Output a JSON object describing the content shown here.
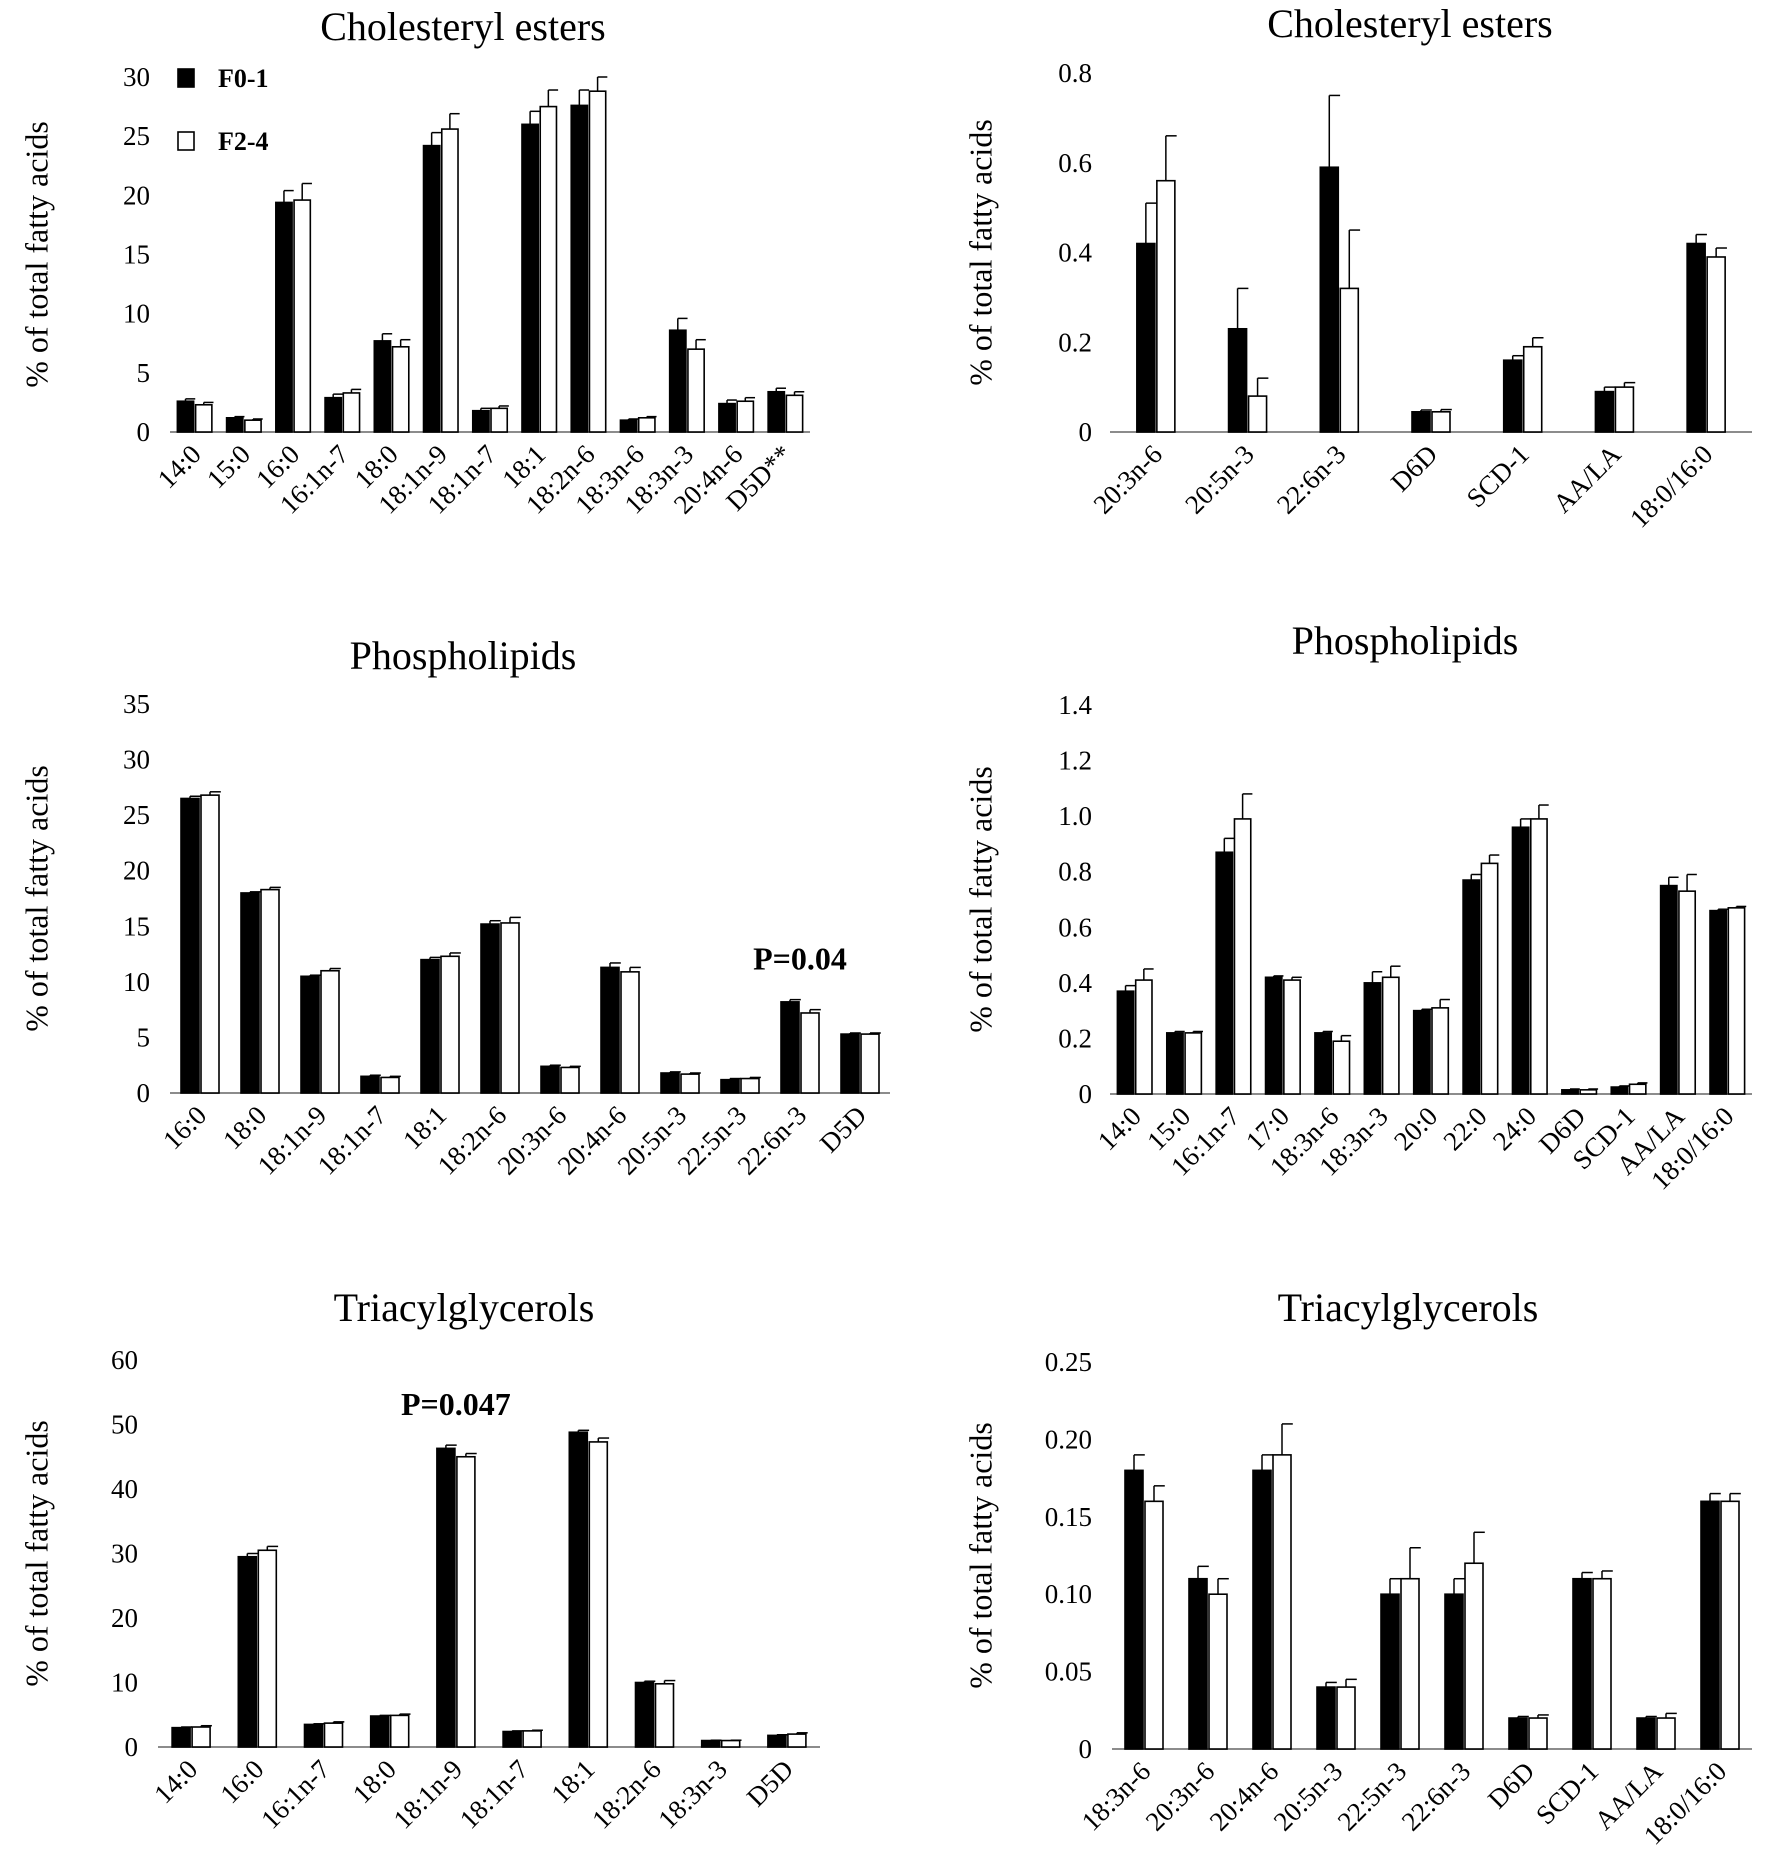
{
  "figure": {
    "series_names": [
      "F0-1",
      "F2-4"
    ],
    "colors": {
      "F0-1": "#000000",
      "F2-4": "#ffffff",
      "axis": "#8c8c8c",
      "error": "#000000"
    }
  },
  "chart_data": [
    {
      "id": "ce-main",
      "type": "bar",
      "title": "Cholesteryl esters",
      "ylabel": "% of total fatty acids",
      "xlabel": "",
      "ylim": [
        0,
        30
      ],
      "yticks": [
        "0",
        "5",
        "10",
        "15",
        "20",
        "25",
        "30"
      ],
      "legend": {
        "position": "top-left",
        "entries": [
          "F0-1",
          "F2-4"
        ]
      },
      "annotation": "",
      "categories": [
        "14:0",
        "15:0",
        "16:0",
        "16:1n-7",
        "18:0",
        "18:1n-9",
        "18:1n-7",
        "18:1",
        "18:2n-6",
        "18:3n-6",
        "18:3n-3",
        "20:4n-6",
        "D5D**"
      ],
      "series": [
        {
          "name": "F0-1",
          "values": [
            2.6,
            1.2,
            19.4,
            2.9,
            7.7,
            24.2,
            1.8,
            26.0,
            27.6,
            1.0,
            8.6,
            2.4,
            3.4
          ],
          "errors": [
            0.2,
            0.1,
            1.0,
            0.3,
            0.6,
            1.1,
            0.2,
            1.1,
            1.3,
            0.1,
            1.0,
            0.3,
            0.3
          ]
        },
        {
          "name": "F2-4",
          "values": [
            2.3,
            1.0,
            19.6,
            3.3,
            7.2,
            25.6,
            2.0,
            27.5,
            28.8,
            1.2,
            7.0,
            2.6,
            3.1
          ],
          "errors": [
            0.2,
            0.1,
            1.4,
            0.3,
            0.6,
            1.3,
            0.2,
            1.4,
            1.2,
            0.1,
            0.8,
            0.3,
            0.3
          ]
        }
      ]
    },
    {
      "id": "ce-minor",
      "type": "bar",
      "title": "Cholesteryl esters",
      "ylabel": "% of total fatty acids",
      "xlabel": "",
      "ylim": [
        0,
        0.8
      ],
      "yticks": [
        "0",
        "0.2",
        "0.4",
        "0.6",
        "0.8"
      ],
      "annotation": "",
      "categories": [
        "20:3n-6",
        "20:5n-3",
        "22:6n-3",
        "D6D",
        "SCD-1",
        "AA/LA",
        "18:0/16:0"
      ],
      "series": [
        {
          "name": "F0-1",
          "values": [
            0.42,
            0.23,
            0.59,
            0.045,
            0.16,
            0.09,
            0.42
          ],
          "errors": [
            0.09,
            0.09,
            0.16,
            0.004,
            0.01,
            0.01,
            0.02
          ]
        },
        {
          "name": "F2-4",
          "values": [
            0.56,
            0.08,
            0.32,
            0.045,
            0.19,
            0.1,
            0.39
          ],
          "errors": [
            0.1,
            0.04,
            0.13,
            0.005,
            0.02,
            0.01,
            0.02
          ]
        }
      ]
    },
    {
      "id": "pl-main",
      "type": "bar",
      "title": "Phospholipids",
      "ylabel": "% of total fatty acids",
      "xlabel": "",
      "ylim": [
        0,
        35
      ],
      "yticks": [
        "0",
        "5",
        "10",
        "15",
        "20",
        "25",
        "30",
        "35"
      ],
      "annotation": "P=0.04",
      "annotation_category": "22:6n-3",
      "categories": [
        "16:0",
        "18:0",
        "18:1n-9",
        "18:1n-7",
        "18:1",
        "18:2n-6",
        "20:3n-6",
        "20:4n-6",
        "20:5n-3",
        "22:5n-3",
        "22:6n-3",
        "D5D"
      ],
      "series": [
        {
          "name": "F0-1",
          "values": [
            26.5,
            18.0,
            10.5,
            1.5,
            12.0,
            15.2,
            2.4,
            11.3,
            1.8,
            1.2,
            8.2,
            5.3
          ],
          "errors": [
            0.2,
            0.1,
            0.1,
            0.1,
            0.2,
            0.3,
            0.1,
            0.4,
            0.1,
            0.1,
            0.2,
            0.1
          ]
        },
        {
          "name": "F2-4",
          "values": [
            26.8,
            18.3,
            11.0,
            1.4,
            12.3,
            15.3,
            2.3,
            10.9,
            1.7,
            1.3,
            7.2,
            5.3
          ],
          "errors": [
            0.3,
            0.2,
            0.2,
            0.1,
            0.3,
            0.5,
            0.1,
            0.4,
            0.1,
            0.1,
            0.3,
            0.1
          ]
        }
      ]
    },
    {
      "id": "pl-minor",
      "type": "bar",
      "title": "Phospholipids",
      "ylabel": "% of total fatty acids",
      "xlabel": "",
      "ylim": [
        0,
        1.4
      ],
      "yticks": [
        "0",
        "0.2",
        "0.4",
        "0.6",
        "0.8",
        "1.0",
        "1.2",
        "1.4"
      ],
      "annotation": "",
      "categories": [
        "14:0",
        "15:0",
        "16:1n-7",
        "17:0",
        "18:3n-6",
        "18:3n-3",
        "20:0",
        "22:0",
        "24:0",
        "D6D",
        "SCD-1",
        "AA/LA",
        "18:0/16:0"
      ],
      "series": [
        {
          "name": "F0-1",
          "values": [
            0.37,
            0.22,
            0.87,
            0.42,
            0.22,
            0.4,
            0.3,
            0.77,
            0.96,
            0.015,
            0.025,
            0.75,
            0.66
          ],
          "errors": [
            0.02,
            0.005,
            0.05,
            0.005,
            0.005,
            0.04,
            0.005,
            0.02,
            0.03,
            0.003,
            0.004,
            0.03,
            0.005
          ]
        },
        {
          "name": "F2-4",
          "values": [
            0.41,
            0.22,
            0.99,
            0.41,
            0.19,
            0.42,
            0.31,
            0.83,
            0.99,
            0.015,
            0.035,
            0.73,
            0.67
          ],
          "errors": [
            0.04,
            0.005,
            0.09,
            0.01,
            0.02,
            0.04,
            0.03,
            0.03,
            0.05,
            0.003,
            0.005,
            0.06,
            0.005
          ]
        }
      ]
    },
    {
      "id": "tg-main",
      "type": "bar",
      "title": "Triacylglycerols",
      "ylabel": "% of  total fatty acids",
      "xlabel": "",
      "ylim": [
        0,
        60
      ],
      "yticks": [
        "0",
        "10",
        "20",
        "30",
        "40",
        "50",
        "60"
      ],
      "annotation": "P=0.047",
      "annotation_category": "18:1n-9",
      "categories": [
        "14:0",
        "16:0",
        "16:1n-7",
        "18:0",
        "18:1n-9",
        "18:1n-7",
        "18:1",
        "18:2n-6",
        "18:3n-3",
        "D5D"
      ],
      "series": [
        {
          "name": "F0-1",
          "values": [
            3.0,
            29.5,
            3.5,
            4.8,
            46.3,
            2.4,
            48.8,
            10.0,
            1.0,
            1.8
          ],
          "errors": [
            0.1,
            0.5,
            0.1,
            0.1,
            0.5,
            0.1,
            0.3,
            0.2,
            0.05,
            0.1
          ]
        },
        {
          "name": "F2-4",
          "values": [
            3.1,
            30.5,
            3.7,
            4.9,
            45.0,
            2.5,
            47.3,
            9.8,
            1.0,
            2.0
          ],
          "errors": [
            0.2,
            0.6,
            0.2,
            0.2,
            0.5,
            0.1,
            0.6,
            0.5,
            0.05,
            0.2
          ]
        }
      ]
    },
    {
      "id": "tg-minor",
      "type": "bar",
      "title": "Triacylglycerols",
      "ylabel": "% of total fatty acids",
      "xlabel": "",
      "ylim": [
        0,
        0.25
      ],
      "yticks": [
        "0",
        "0.05",
        "0.10",
        "0.15",
        "0.20",
        "0.25"
      ],
      "annotation": "",
      "categories": [
        "18:3n-6",
        "20:3n-6",
        "20:4n-6",
        "20:5n-3",
        "22:5n-3",
        "22:6n-3",
        "D6D",
        "SCD-1",
        "AA/LA",
        "18:0/16:0"
      ],
      "series": [
        {
          "name": "F0-1",
          "values": [
            0.18,
            0.11,
            0.18,
            0.04,
            0.1,
            0.1,
            0.02,
            0.11,
            0.02,
            0.16
          ],
          "errors": [
            0.01,
            0.008,
            0.01,
            0.003,
            0.01,
            0.01,
            0.001,
            0.004,
            0.001,
            0.005
          ]
        },
        {
          "name": "F2-4",
          "values": [
            0.16,
            0.1,
            0.19,
            0.04,
            0.11,
            0.12,
            0.02,
            0.11,
            0.02,
            0.16
          ],
          "errors": [
            0.01,
            0.01,
            0.02,
            0.005,
            0.02,
            0.02,
            0.002,
            0.005,
            0.003,
            0.005
          ]
        }
      ]
    }
  ]
}
